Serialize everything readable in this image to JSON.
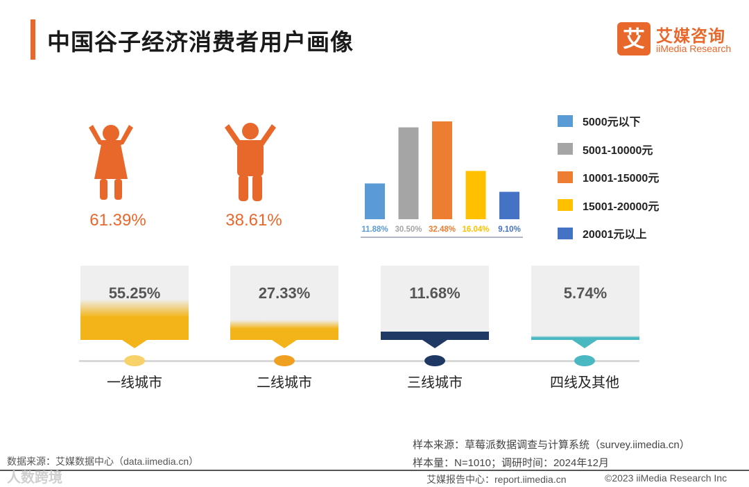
{
  "header": {
    "title": "中国谷子经济消费者用户画像"
  },
  "logo": {
    "mark": "艾",
    "name_cn": "艾媒咨询",
    "name_en": "iiMedia Research",
    "brand_color": "#e8672b"
  },
  "gender": {
    "female": {
      "value_label": "61.39%",
      "icon": "female-person-icon"
    },
    "male": {
      "value_label": "38.61%",
      "icon": "male-person-icon"
    }
  },
  "chart_data": [
    {
      "type": "bar",
      "categories": [
        "5000元以下",
        "5001-10000元",
        "10001-15000元",
        "15001-20000元",
        "20001元以上"
      ],
      "values": [
        11.88,
        30.5,
        32.48,
        16.04,
        9.1
      ],
      "labels": [
        "11.88%",
        "30.50%",
        "32.48%",
        "16.04%",
        "9.10%"
      ],
      "colors": [
        "#5b9bd5",
        "#a5a5a5",
        "#ed7d31",
        "#ffc000",
        "#4472c4"
      ],
      "ylim": [
        0,
        32.48
      ],
      "legend": "right",
      "grid": false
    },
    {
      "type": "bar",
      "categories": [
        "一线城市",
        "二线城市",
        "三线城市",
        "四线及其他"
      ],
      "values": [
        55.25,
        27.33,
        11.68,
        5.74
      ],
      "labels": [
        "55.25%",
        "27.33%",
        "11.68%",
        "5.74%"
      ],
      "colors": [
        "#f2b418",
        "#f2b418",
        "#1f3864",
        "#4ab8c1"
      ],
      "dot_colors": [
        "#f7d26a",
        "#f0a020",
        "#1f3864",
        "#4ab8c1"
      ],
      "ylim": [
        0,
        100
      ]
    }
  ],
  "notes": {
    "source_right": "样本来源：草莓派数据调查与计算系统（survey.iimedia.cn）",
    "sample": "样本量：N=1010；调研时间：2024年12月",
    "source_left": "数据来源：艾媒数据中心（data.iimedia.cn）"
  },
  "footer": {
    "report": "艾媒报告中心：report.iimedia.cn",
    "copyright": "©2023  iiMedia Research  Inc",
    "watermark": "人数跨境"
  }
}
